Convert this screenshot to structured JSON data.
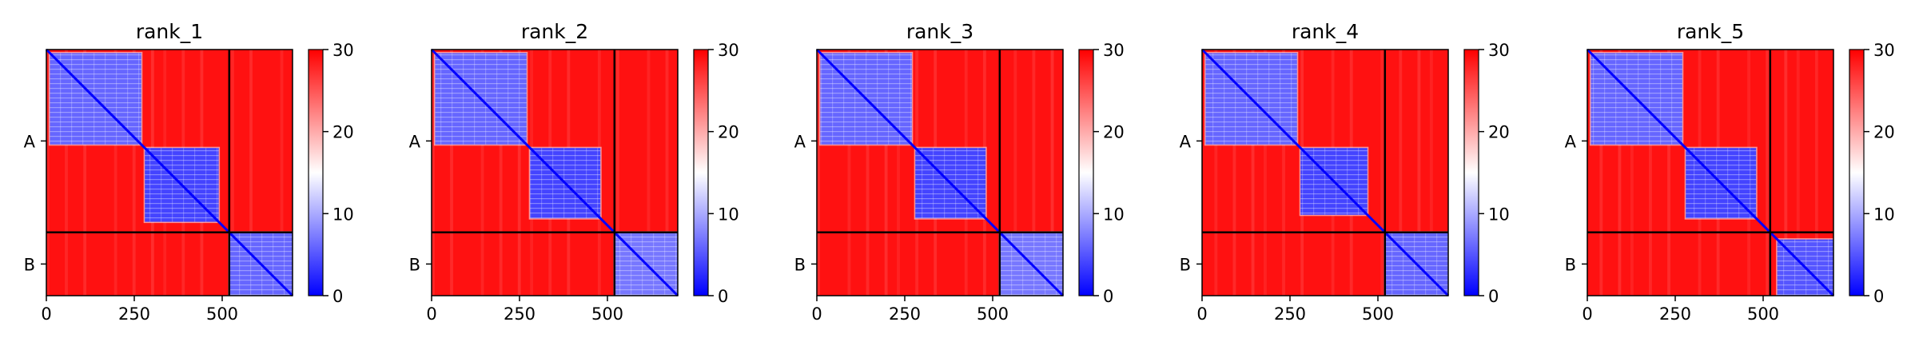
{
  "chart_data": {
    "type": "heatmap",
    "colormap": {
      "name": "bwr",
      "low": "#0000ff",
      "mid": "#ffffff",
      "high": "#ff0000"
    },
    "vmin": 0,
    "vmax": 30,
    "colorbar_ticks": [
      "0",
      "10",
      "20",
      "30"
    ],
    "matrix_size": 700,
    "xticks": [
      {
        "value": 0,
        "label": "0"
      },
      {
        "value": 250,
        "label": "250"
      },
      {
        "value": 500,
        "label": "500"
      }
    ],
    "chain_boundaries": [
      520
    ],
    "chain_labels": [
      {
        "label": "A",
        "center": 260
      },
      {
        "label": "B",
        "center": 610
      }
    ],
    "background_value": 29,
    "panels": [
      {
        "title": "rank_1",
        "blocks": [
          {
            "start": 10,
            "end": 270,
            "value": 6
          },
          {
            "start": 280,
            "end": 490,
            "value": 4
          },
          {
            "start": 520,
            "end": 700,
            "value": 6
          }
        ]
      },
      {
        "title": "rank_2",
        "blocks": [
          {
            "start": 10,
            "end": 270,
            "value": 6
          },
          {
            "start": 280,
            "end": 480,
            "value": 4
          },
          {
            "start": 520,
            "end": 700,
            "value": 7
          }
        ]
      },
      {
        "title": "rank_3",
        "blocks": [
          {
            "start": 10,
            "end": 270,
            "value": 6
          },
          {
            "start": 280,
            "end": 480,
            "value": 4
          },
          {
            "start": 520,
            "end": 700,
            "value": 7
          }
        ]
      },
      {
        "title": "rank_4",
        "blocks": [
          {
            "start": 10,
            "end": 270,
            "value": 6
          },
          {
            "start": 280,
            "end": 470,
            "value": 4
          },
          {
            "start": 520,
            "end": 700,
            "value": 6
          }
        ]
      },
      {
        "title": "rank_5",
        "blocks": [
          {
            "start": 10,
            "end": 270,
            "value": 6
          },
          {
            "start": 280,
            "end": 480,
            "value": 4
          },
          {
            "start": 540,
            "end": 700,
            "value": 5
          }
        ]
      }
    ]
  }
}
